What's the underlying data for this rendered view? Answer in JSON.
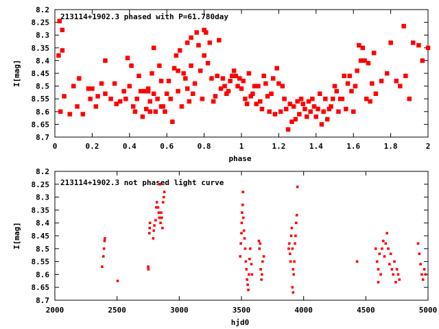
{
  "chart_data": [
    {
      "type": "scatter",
      "title": "213114+1902.3 phased with P=61.780day",
      "xlabel": "phase",
      "ylabel": "I[mag]",
      "xlim": [
        0,
        2
      ],
      "ylim": [
        8.7,
        8.2
      ],
      "y_inverted": true,
      "x_ticks": [
        "0",
        "0.2",
        "0.4",
        "0.6",
        "0.8",
        "1",
        "1.2",
        "1.4",
        "1.6",
        "1.8",
        "2"
      ],
      "y_ticks": [
        "8.2",
        "8.25",
        "8.3",
        "8.35",
        "8.4",
        "8.45",
        "8.5",
        "8.55",
        "8.6",
        "8.65",
        "8.7"
      ],
      "marker_color": "#ff0000",
      "points": [
        [
          0.02,
          8.38
        ],
        [
          0.025,
          8.245
        ],
        [
          0.04,
          8.28
        ],
        [
          0.04,
          8.36
        ],
        [
          0.03,
          8.6
        ],
        [
          0.05,
          8.54
        ],
        [
          0.08,
          8.61
        ],
        [
          0.1,
          8.5
        ],
        [
          0.12,
          8.58
        ],
        [
          0.13,
          8.47
        ],
        [
          0.15,
          8.61
        ],
        [
          0.18,
          8.51
        ],
        [
          0.19,
          8.55
        ],
        [
          0.2,
          8.51
        ],
        [
          0.22,
          8.58
        ],
        [
          0.23,
          8.54
        ],
        [
          0.25,
          8.49
        ],
        [
          0.27,
          8.53
        ],
        [
          0.27,
          8.4
        ],
        [
          0.3,
          8.55
        ],
        [
          0.32,
          8.49
        ],
        [
          0.33,
          8.57
        ],
        [
          0.35,
          8.56
        ],
        [
          0.37,
          8.52
        ],
        [
          0.38,
          8.55
        ],
        [
          0.39,
          8.39
        ],
        [
          0.4,
          8.5
        ],
        [
          0.41,
          8.42
        ],
        [
          0.42,
          8.58
        ],
        [
          0.43,
          8.6
        ],
        [
          0.44,
          8.55
        ],
        [
          0.45,
          8.46
        ],
        [
          0.46,
          8.52
        ],
        [
          0.47,
          8.62
        ],
        [
          0.48,
          8.52
        ],
        [
          0.49,
          8.59
        ],
        [
          0.5,
          8.52
        ],
        [
          0.5,
          8.51
        ],
        [
          0.51,
          8.6
        ],
        [
          0.51,
          8.56
        ],
        [
          0.52,
          8.45
        ],
        [
          0.53,
          8.35
        ],
        [
          0.53,
          8.53
        ],
        [
          0.54,
          8.6
        ],
        [
          0.55,
          8.55
        ],
        [
          0.56,
          8.42
        ],
        [
          0.57,
          8.58
        ],
        [
          0.57,
          8.48
        ],
        [
          0.58,
          8.58
        ],
        [
          0.59,
          8.6
        ],
        [
          0.6,
          8.53
        ],
        [
          0.61,
          8.48
        ],
        [
          0.62,
          8.55
        ],
        [
          0.63,
          8.64
        ],
        [
          0.64,
          8.43
        ],
        [
          0.65,
          8.38
        ],
        [
          0.66,
          8.44
        ],
        [
          0.66,
          8.52
        ],
        [
          0.67,
          8.36
        ],
        [
          0.68,
          8.58
        ],
        [
          0.69,
          8.45
        ],
        [
          0.7,
          8.47
        ],
        [
          0.71,
          8.51
        ],
        [
          0.71,
          8.33
        ],
        [
          0.72,
          8.56
        ],
        [
          0.73,
          8.42
        ],
        [
          0.73,
          8.31
        ],
        [
          0.74,
          8.53
        ],
        [
          0.75,
          8.49
        ],
        [
          0.76,
          8.29
        ],
        [
          0.77,
          8.34
        ],
        [
          0.78,
          8.44
        ],
        [
          0.79,
          8.55
        ],
        [
          0.8,
          8.28
        ],
        [
          0.8,
          8.38
        ],
        [
          0.81,
          8.29
        ],
        [
          0.82,
          8.41
        ],
        [
          0.83,
          8.33
        ],
        [
          0.84,
          8.47
        ],
        [
          0.85,
          8.56
        ],
        [
          0.86,
          8.54
        ],
        [
          0.87,
          8.46
        ],
        [
          0.88,
          8.32
        ],
        [
          0.89,
          8.51
        ],
        [
          0.9,
          8.47
        ],
        [
          0.91,
          8.5
        ],
        [
          0.92,
          8.53
        ],
        [
          0.93,
          8.52
        ],
        [
          0.94,
          8.48
        ],
        [
          0.95,
          8.46
        ],
        [
          0.96,
          8.44
        ],
        [
          0.97,
          8.46
        ],
        [
          0.98,
          8.5
        ],
        [
          0.99,
          8.47
        ],
        [
          1.0,
          8.51
        ],
        [
          1.01,
          8.48
        ],
        [
          1.02,
          8.55
        ],
        [
          1.03,
          8.57
        ],
        [
          1.04,
          8.45
        ],
        [
          1.05,
          8.54
        ],
        [
          1.06,
          8.53
        ],
        [
          1.07,
          8.5
        ],
        [
          1.08,
          8.57
        ],
        [
          1.09,
          8.5
        ],
        [
          1.1,
          8.56
        ],
        [
          1.11,
          8.59
        ],
        [
          1.12,
          8.46
        ],
        [
          1.13,
          8.49
        ],
        [
          1.14,
          8.54
        ],
        [
          1.15,
          8.6
        ],
        [
          1.16,
          8.53
        ],
        [
          1.17,
          8.47
        ],
        [
          1.18,
          8.61
        ],
        [
          1.19,
          8.43
        ],
        [
          1.2,
          8.49
        ],
        [
          1.21,
          8.6
        ],
        [
          1.22,
          8.5
        ],
        [
          1.23,
          8.55
        ],
        [
          1.24,
          8.59
        ],
        [
          1.25,
          8.67
        ],
        [
          1.26,
          8.57
        ],
        [
          1.27,
          8.64
        ],
        [
          1.28,
          8.58
        ],
        [
          1.29,
          8.63
        ],
        [
          1.3,
          8.56
        ],
        [
          1.31,
          8.61
        ],
        [
          1.32,
          8.55
        ],
        [
          1.33,
          8.57
        ],
        [
          1.34,
          8.59
        ],
        [
          1.35,
          8.62
        ],
        [
          1.36,
          8.56
        ],
        [
          1.37,
          8.6
        ],
        [
          1.38,
          8.55
        ],
        [
          1.39,
          8.58
        ],
        [
          1.4,
          8.62
        ],
        [
          1.41,
          8.59
        ],
        [
          1.42,
          8.53
        ],
        [
          1.43,
          8.65
        ],
        [
          1.44,
          8.6
        ],
        [
          1.45,
          8.55
        ],
        [
          1.46,
          8.63
        ],
        [
          1.47,
          8.59
        ],
        [
          1.48,
          8.58
        ],
        [
          1.49,
          8.55
        ],
        [
          1.5,
          8.5
        ],
        [
          1.51,
          8.52
        ],
        [
          1.52,
          8.6
        ],
        [
          1.53,
          8.55
        ],
        [
          1.54,
          8.55
        ],
        [
          1.55,
          8.46
        ],
        [
          1.56,
          8.59
        ],
        [
          1.57,
          8.49
        ],
        [
          1.58,
          8.46
        ],
        [
          1.59,
          8.52
        ],
        [
          1.6,
          8.6
        ],
        [
          1.61,
          8.5
        ],
        [
          1.62,
          8.44
        ],
        [
          1.63,
          8.34
        ],
        [
          1.64,
          8.4
        ],
        [
          1.65,
          8.35
        ],
        [
          1.66,
          8.4
        ],
        [
          1.67,
          8.55
        ],
        [
          1.68,
          8.41
        ],
        [
          1.69,
          8.56
        ],
        [
          1.7,
          8.49
        ],
        [
          1.71,
          8.37
        ],
        [
          1.72,
          8.53
        ],
        [
          1.75,
          8.48
        ],
        [
          1.78,
          8.45
        ],
        [
          1.8,
          8.33
        ],
        [
          1.83,
          8.48
        ],
        [
          1.85,
          8.5
        ],
        [
          1.87,
          8.265
        ],
        [
          1.88,
          8.46
        ],
        [
          1.9,
          8.55
        ],
        [
          1.92,
          8.33
        ],
        [
          1.95,
          8.34
        ],
        [
          1.97,
          8.4
        ],
        [
          2.0,
          8.35
        ]
      ]
    },
    {
      "type": "scatter",
      "title": "213114+1902.3 not phased light curve",
      "xlabel": "hjd0",
      "ylabel": "I[mag]",
      "xlim": [
        2000,
        5000
      ],
      "ylim": [
        8.7,
        8.2
      ],
      "y_inverted": true,
      "x_ticks": [
        "2000",
        "2500",
        "3000",
        "3500",
        "4000",
        "4500",
        "5000"
      ],
      "y_ticks": [
        "8.2",
        "8.25",
        "8.3",
        "8.35",
        "8.4",
        "8.45",
        "8.5",
        "8.55",
        "8.6",
        "8.65",
        "8.7"
      ],
      "marker_color": "#ff0000",
      "points": [
        [
          2380,
          8.57
        ],
        [
          2390,
          8.53
        ],
        [
          2395,
          8.5
        ],
        [
          2400,
          8.47
        ],
        [
          2402,
          8.46
        ],
        [
          2505,
          8.625
        ],
        [
          2750,
          8.57
        ],
        [
          2752,
          8.58
        ],
        [
          2760,
          8.44
        ],
        [
          2762,
          8.42
        ],
        [
          2765,
          8.4
        ],
        [
          2790,
          8.46
        ],
        [
          2795,
          8.43
        ],
        [
          2800,
          8.41
        ],
        [
          2810,
          8.39
        ],
        [
          2815,
          8.34
        ],
        [
          2820,
          8.32
        ],
        [
          2830,
          8.34
        ],
        [
          2835,
          8.36
        ],
        [
          2840,
          8.38
        ],
        [
          2845,
          8.25
        ],
        [
          2850,
          8.4
        ],
        [
          2855,
          8.36
        ],
        [
          2860,
          8.38
        ],
        [
          2865,
          8.42
        ],
        [
          2870,
          8.32
        ],
        [
          2875,
          8.3
        ],
        [
          2880,
          8.28
        ],
        [
          3490,
          8.53
        ],
        [
          3495,
          8.48
        ],
        [
          3500,
          8.44
        ],
        [
          3502,
          8.4
        ],
        [
          3505,
          8.36
        ],
        [
          3510,
          8.33
        ],
        [
          3512,
          8.28
        ],
        [
          3515,
          8.38
        ],
        [
          3520,
          8.43
        ],
        [
          3525,
          8.46
        ],
        [
          3530,
          8.5
        ],
        [
          3535,
          8.55
        ],
        [
          3540,
          8.58
        ],
        [
          3545,
          8.62
        ],
        [
          3550,
          8.64
        ],
        [
          3555,
          8.66
        ],
        [
          3560,
          8.6
        ],
        [
          3565,
          8.54
        ],
        [
          3570,
          8.5
        ],
        [
          3580,
          8.56
        ],
        [
          3585,
          8.6
        ],
        [
          3640,
          8.47
        ],
        [
          3645,
          8.5
        ],
        [
          3650,
          8.48
        ],
        [
          3655,
          8.58
        ],
        [
          3660,
          8.62
        ],
        [
          3665,
          8.6
        ],
        [
          3670,
          8.55
        ],
        [
          3680,
          8.53
        ],
        [
          3880,
          8.5
        ],
        [
          3885,
          8.48
        ],
        [
          3890,
          8.52
        ],
        [
          3895,
          8.55
        ],
        [
          3900,
          8.45
        ],
        [
          3905,
          8.42
        ],
        [
          3910,
          8.5
        ],
        [
          3915,
          8.58
        ],
        [
          3920,
          8.6
        ],
        [
          3925,
          8.55
        ],
        [
          3930,
          8.48
        ],
        [
          3935,
          8.45
        ],
        [
          3940,
          8.4
        ],
        [
          3945,
          8.37
        ],
        [
          3950,
          8.26
        ],
        [
          3910,
          8.65
        ],
        [
          3915,
          8.67
        ],
        [
          4430,
          8.55
        ],
        [
          4580,
          8.5
        ],
        [
          4590,
          8.55
        ],
        [
          4600,
          8.58
        ],
        [
          4610,
          8.52
        ],
        [
          4620,
          8.6
        ],
        [
          4630,
          8.5
        ],
        [
          4640,
          8.47
        ],
        [
          4650,
          8.53
        ],
        [
          4660,
          8.48
        ],
        [
          4670,
          8.44
        ],
        [
          4680,
          8.5
        ],
        [
          4690,
          8.56
        ],
        [
          4700,
          8.52
        ],
        [
          4710,
          8.58
        ],
        [
          4720,
          8.6
        ],
        [
          4730,
          8.55
        ],
        [
          4740,
          8.63
        ],
        [
          4750,
          8.58
        ],
        [
          4760,
          8.6
        ],
        [
          4770,
          8.62
        ],
        [
          4600,
          8.63
        ],
        [
          4920,
          8.48
        ],
        [
          4930,
          8.52
        ],
        [
          4940,
          8.56
        ],
        [
          4950,
          8.6
        ],
        [
          4960,
          8.62
        ],
        [
          4970,
          8.58
        ],
        [
          4980,
          8.6
        ]
      ]
    }
  ]
}
